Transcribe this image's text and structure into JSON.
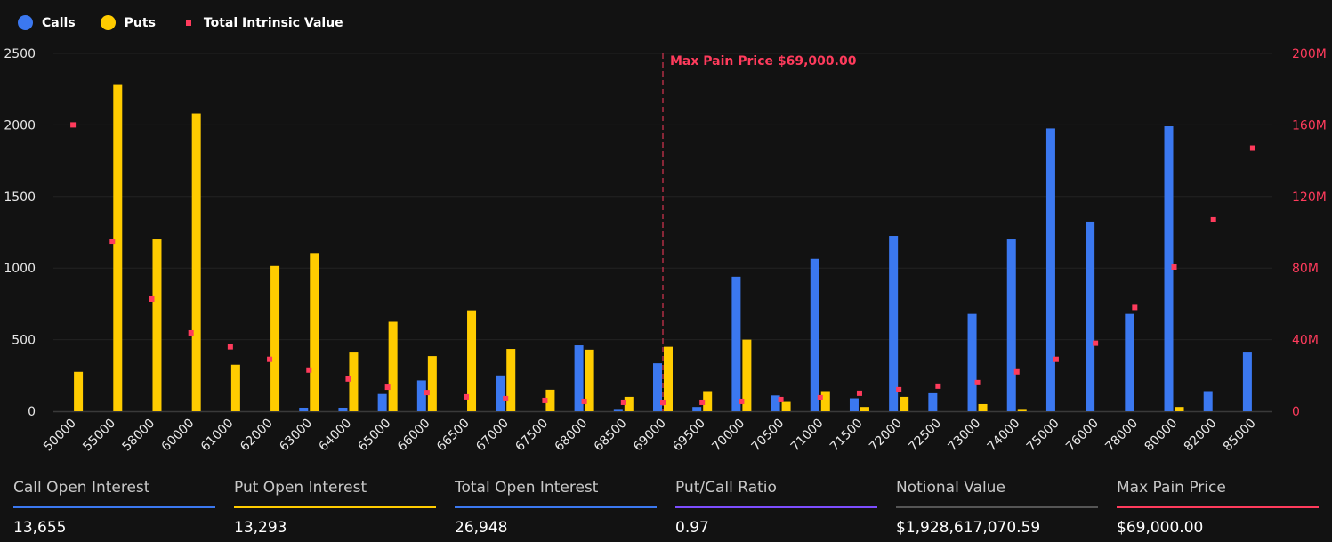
{
  "legend": {
    "calls": "Calls",
    "puts": "Puts",
    "tiv": "Total Intrinsic Value"
  },
  "colors": {
    "calls": "#3b78f0",
    "puts": "#ffcc00",
    "tiv": "#ff3b5c",
    "grid": "#222222",
    "axis": "#3a3a3a"
  },
  "chart_data": {
    "type": "bar",
    "categories": [
      "50000",
      "55000",
      "58000",
      "60000",
      "61000",
      "62000",
      "63000",
      "64000",
      "65000",
      "66000",
      "66500",
      "67000",
      "67500",
      "68000",
      "68500",
      "69000",
      "69500",
      "70000",
      "70500",
      "71000",
      "71500",
      "72000",
      "72500",
      "73000",
      "74000",
      "75000",
      "76000",
      "78000",
      "80000",
      "82000",
      "85000"
    ],
    "series": [
      {
        "name": "Calls",
        "axis": "left",
        "values": [
          0,
          0,
          0,
          0,
          0,
          0,
          25,
          25,
          120,
          215,
          0,
          250,
          0,
          460,
          10,
          335,
          30,
          940,
          110,
          1065,
          90,
          1225,
          125,
          680,
          1200,
          1975,
          1325,
          680,
          1990,
          140,
          410
        ]
      },
      {
        "name": "Puts",
        "axis": "left",
        "values": [
          275,
          2285,
          1200,
          2080,
          325,
          1015,
          1105,
          410,
          625,
          385,
          705,
          435,
          150,
          430,
          100,
          450,
          140,
          500,
          65,
          140,
          30,
          100,
          0,
          50,
          10,
          0,
          0,
          0,
          30,
          0,
          0
        ]
      },
      {
        "name": "Total Intrinsic Value",
        "axis": "right",
        "type": "scatter",
        "values": [
          160000000,
          95000000,
          62700000,
          43800000,
          36000000,
          29000000,
          23000000,
          18000000,
          13400000,
          10400000,
          8000000,
          7000000,
          6000000,
          5500000,
          5000000,
          5000000,
          5000000,
          5500000,
          6500000,
          7500000,
          10000000,
          12000000,
          14000000,
          16000000,
          22000000,
          29000000,
          38000000,
          58000000,
          80600000,
          107000000,
          147000000
        ]
      }
    ],
    "ylim": [
      0,
      2500
    ],
    "yticks": [
      "0",
      "500",
      "1000",
      "1500",
      "2000",
      "2500"
    ],
    "y2lim": [
      0,
      200000000
    ],
    "y2ticks": [
      "0",
      "40M",
      "80M",
      "120M",
      "160M",
      "200M"
    ],
    "annotation": {
      "label": "Max Pain Price $69,000.00",
      "category": "69000"
    },
    "legend_position": "top-left",
    "grid": true
  },
  "stats": [
    {
      "label": "Call Open Interest",
      "value": "13,655",
      "color": "#3b78f0"
    },
    {
      "label": "Put Open Interest",
      "value": "13,293",
      "color": "#ffcc00"
    },
    {
      "label": "Total Open Interest",
      "value": "26,948",
      "color": "#3b78f0"
    },
    {
      "label": "Put/Call Ratio",
      "value": "0.97",
      "color": "#7c4dff"
    },
    {
      "label": "Notional Value",
      "value": "$1,928,617,070.59",
      "color": "#555555"
    },
    {
      "label": "Max Pain Price",
      "value": "$69,000.00",
      "color": "#ff3b5c"
    }
  ]
}
